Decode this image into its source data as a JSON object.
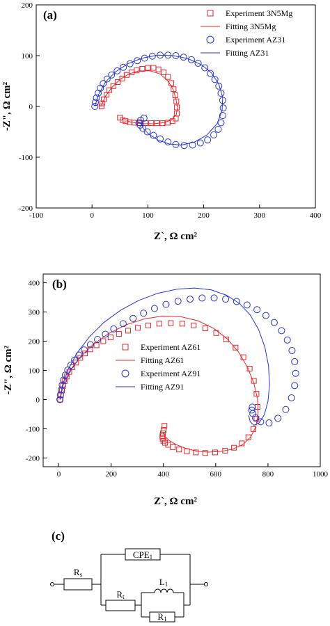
{
  "chart_data": [
    {
      "type": "scatter",
      "panel_label": "(a)",
      "xlabel": "Z`,  Ω cm²",
      "ylabel": "-Z\",  Ω cm²",
      "xlim": [
        -100,
        400
      ],
      "ylim": [
        -200,
        200
      ],
      "x_ticks": [
        -100,
        0,
        100,
        200,
        300,
        400
      ],
      "y_ticks": [
        -200,
        -100,
        0,
        100,
        200
      ],
      "legend_position": "top-right",
      "colors": {
        "red": "#e8262a",
        "blue": "#2233cc"
      },
      "series": [
        {
          "name": "Experiment 3N5Mg",
          "marker": "square",
          "color": "#e8262a",
          "x": [
            17,
            18,
            21,
            26,
            31,
            38,
            46,
            54,
            62,
            71,
            80,
            90,
            100,
            110,
            119,
            128,
            136,
            142,
            146,
            149,
            151,
            152,
            152,
            150,
            144,
            136,
            126,
            116,
            106,
            96,
            86,
            76,
            67,
            60,
            55,
            50
          ],
          "y": [
            0,
            6,
            14,
            23,
            32,
            40,
            48,
            55,
            62,
            67,
            71,
            74,
            76,
            76,
            73,
            67,
            58,
            46,
            34,
            22,
            10,
            -2,
            -14,
            -24,
            -29,
            -32,
            -33,
            -33,
            -33,
            -33,
            -33,
            -32,
            -31,
            -29,
            -27,
            -22
          ]
        },
        {
          "name": "Fitting 3N5Mg",
          "type": "line",
          "color": "#e8262a",
          "x": [
            16,
            24,
            36,
            50,
            66,
            84,
            104,
            122,
            136,
            145,
            150,
            153,
            151,
            142,
            128,
            112,
            96,
            82,
            70,
            62
          ],
          "y": [
            0,
            20,
            38,
            53,
            64,
            70,
            70,
            64,
            50,
            34,
            16,
            -2,
            -16,
            -27,
            -32,
            -34,
            -34,
            -33,
            -31,
            -28
          ]
        },
        {
          "name": "Experiment AZ31",
          "marker": "circle",
          "color": "#2233cc",
          "x": [
            5,
            6,
            8,
            11,
            15,
            20,
            27,
            35,
            45,
            56,
            68,
            81,
            94,
            108,
            122,
            136,
            150,
            164,
            178,
            190,
            202,
            212,
            220,
            227,
            231,
            234,
            235,
            234,
            231,
            226,
            218,
            207,
            194,
            180,
            165,
            150,
            136,
            122,
            110,
            99,
            91,
            86,
            84,
            87,
            93
          ],
          "y": [
            0,
            8,
            17,
            26,
            36,
            45,
            54,
            62,
            70,
            77,
            84,
            90,
            95,
            99,
            101,
            101,
            100,
            97,
            92,
            85,
            76,
            65,
            53,
            40,
            26,
            12,
            -3,
            -18,
            -32,
            -45,
            -56,
            -66,
            -72,
            -76,
            -77,
            -75,
            -70,
            -64,
            -57,
            -50,
            -43,
            -37,
            -32,
            -27,
            -23
          ]
        },
        {
          "name": "Fitting AZ31",
          "type": "line",
          "color": "#2233cc",
          "x": [
            5,
            12,
            24,
            42,
            64,
            90,
            118,
            146,
            172,
            196,
            214,
            227,
            234,
            233,
            224,
            206,
            184,
            160,
            138,
            118,
            102,
            92,
            88
          ],
          "y": [
            0,
            24,
            48,
            68,
            84,
            95,
            101,
            100,
            94,
            82,
            66,
            44,
            18,
            -8,
            -34,
            -56,
            -70,
            -76,
            -74,
            -66,
            -55,
            -44,
            -34
          ]
        }
      ]
    },
    {
      "type": "scatter",
      "panel_label": "(b)",
      "xlabel": "Z`,  Ω cm²",
      "ylabel": "-Z\",  Ω cm²",
      "xlim": [
        -60,
        1000
      ],
      "ylim": [
        -230,
        430
      ],
      "x_ticks": [
        0,
        200,
        400,
        600,
        800,
        1000
      ],
      "y_ticks": [
        -200,
        -100,
        0,
        100,
        200,
        300,
        400
      ],
      "legend_position": "center",
      "colors": {
        "red": "#e8262a",
        "blue": "#2233cc"
      },
      "series": [
        {
          "name": "Experiment AZ61",
          "marker": "square",
          "color": "#e8262a",
          "x": [
            5,
            8,
            12,
            16,
            22,
            30,
            40,
            52,
            66,
            82,
            100,
            120,
            144,
            170,
            198,
            230,
            265,
            302,
            342,
            384,
            428,
            472,
            516,
            560,
            602,
            640,
            676,
            706,
            730,
            746,
            756,
            760,
            756,
            744,
            725,
            700,
            670,
            636,
            598,
            560,
            524,
            490,
            460,
            436,
            418,
            406,
            400,
            397,
            396,
            398,
            401,
            404
          ],
          "y": [
            0,
            15,
            31,
            47,
            63,
            79,
            95,
            111,
            127,
            143,
            158,
            172,
            186,
            200,
            213,
            225,
            236,
            246,
            254,
            260,
            262,
            260,
            254,
            244,
            228,
            206,
            178,
            145,
            106,
            64,
            20,
            -25,
            -66,
            -101,
            -129,
            -150,
            -165,
            -175,
            -181,
            -183,
            -181,
            -177,
            -171,
            -163,
            -155,
            -148,
            -141,
            -134,
            -126,
            -116,
            -104,
            -90
          ]
        },
        {
          "name": "Fitting AZ61",
          "type": "line",
          "color": "#e8262a",
          "x": [
            5,
            16,
            40,
            80,
            130,
            190,
            256,
            326,
            396,
            466,
            532,
            592,
            644,
            688,
            722,
            746,
            760,
            762,
            754,
            734,
            704,
            664,
            618,
            570,
            524,
            482,
            448,
            422,
            406,
            398
          ],
          "y": [
            0,
            48,
            96,
            144,
            188,
            226,
            256,
            276,
            286,
            284,
            270,
            244,
            208,
            162,
            110,
            56,
            2,
            -48,
            -92,
            -128,
            -154,
            -170,
            -178,
            -180,
            -176,
            -166,
            -154,
            -140,
            -126,
            -112
          ]
        },
        {
          "name": "Experiment AZ91",
          "marker": "circle",
          "color": "#2233cc",
          "x": [
            4,
            6,
            9,
            13,
            18,
            25,
            34,
            46,
            60,
            77,
            97,
            121,
            148,
            178,
            210,
            246,
            284,
            324,
            366,
            410,
            456,
            502,
            548,
            594,
            638,
            680,
            720,
            758,
            792,
            824,
            852,
            874,
            892,
            902,
            906,
            902,
            890,
            868,
            838,
            804,
            772,
            752,
            742,
            738,
            740
          ],
          "y": [
            0,
            16,
            33,
            50,
            67,
            84,
            101,
            118,
            135,
            152,
            170,
            188,
            206,
            224,
            242,
            260,
            278,
            296,
            312,
            326,
            337,
            344,
            348,
            348,
            344,
            336,
            324,
            308,
            288,
            264,
            236,
            204,
            168,
            130,
            90,
            48,
            6,
            -34,
            -64,
            -80,
            -76,
            -62,
            -48,
            -36,
            -26
          ]
        },
        {
          "name": "Fitting AZ91",
          "type": "line",
          "color": "#2233cc",
          "x": [
            4,
            14,
            36,
            70,
            116,
            172,
            236,
            306,
            378,
            450,
            518,
            582,
            640,
            690,
            732,
            764,
            788,
            802,
            806,
            800,
            786,
            766,
            746,
            732,
            726
          ],
          "y": [
            0,
            50,
            104,
            160,
            214,
            264,
            306,
            340,
            364,
            378,
            382,
            376,
            358,
            330,
            290,
            240,
            180,
            116,
            52,
            -6,
            -52,
            -80,
            -88,
            -76,
            -54
          ]
        }
      ]
    }
  ],
  "circuit": {
    "label": "(c)",
    "components": {
      "rs": "Rs",
      "cpe": "CPE1",
      "rt": "Rt",
      "l1": "L1",
      "r1": "R1"
    }
  }
}
